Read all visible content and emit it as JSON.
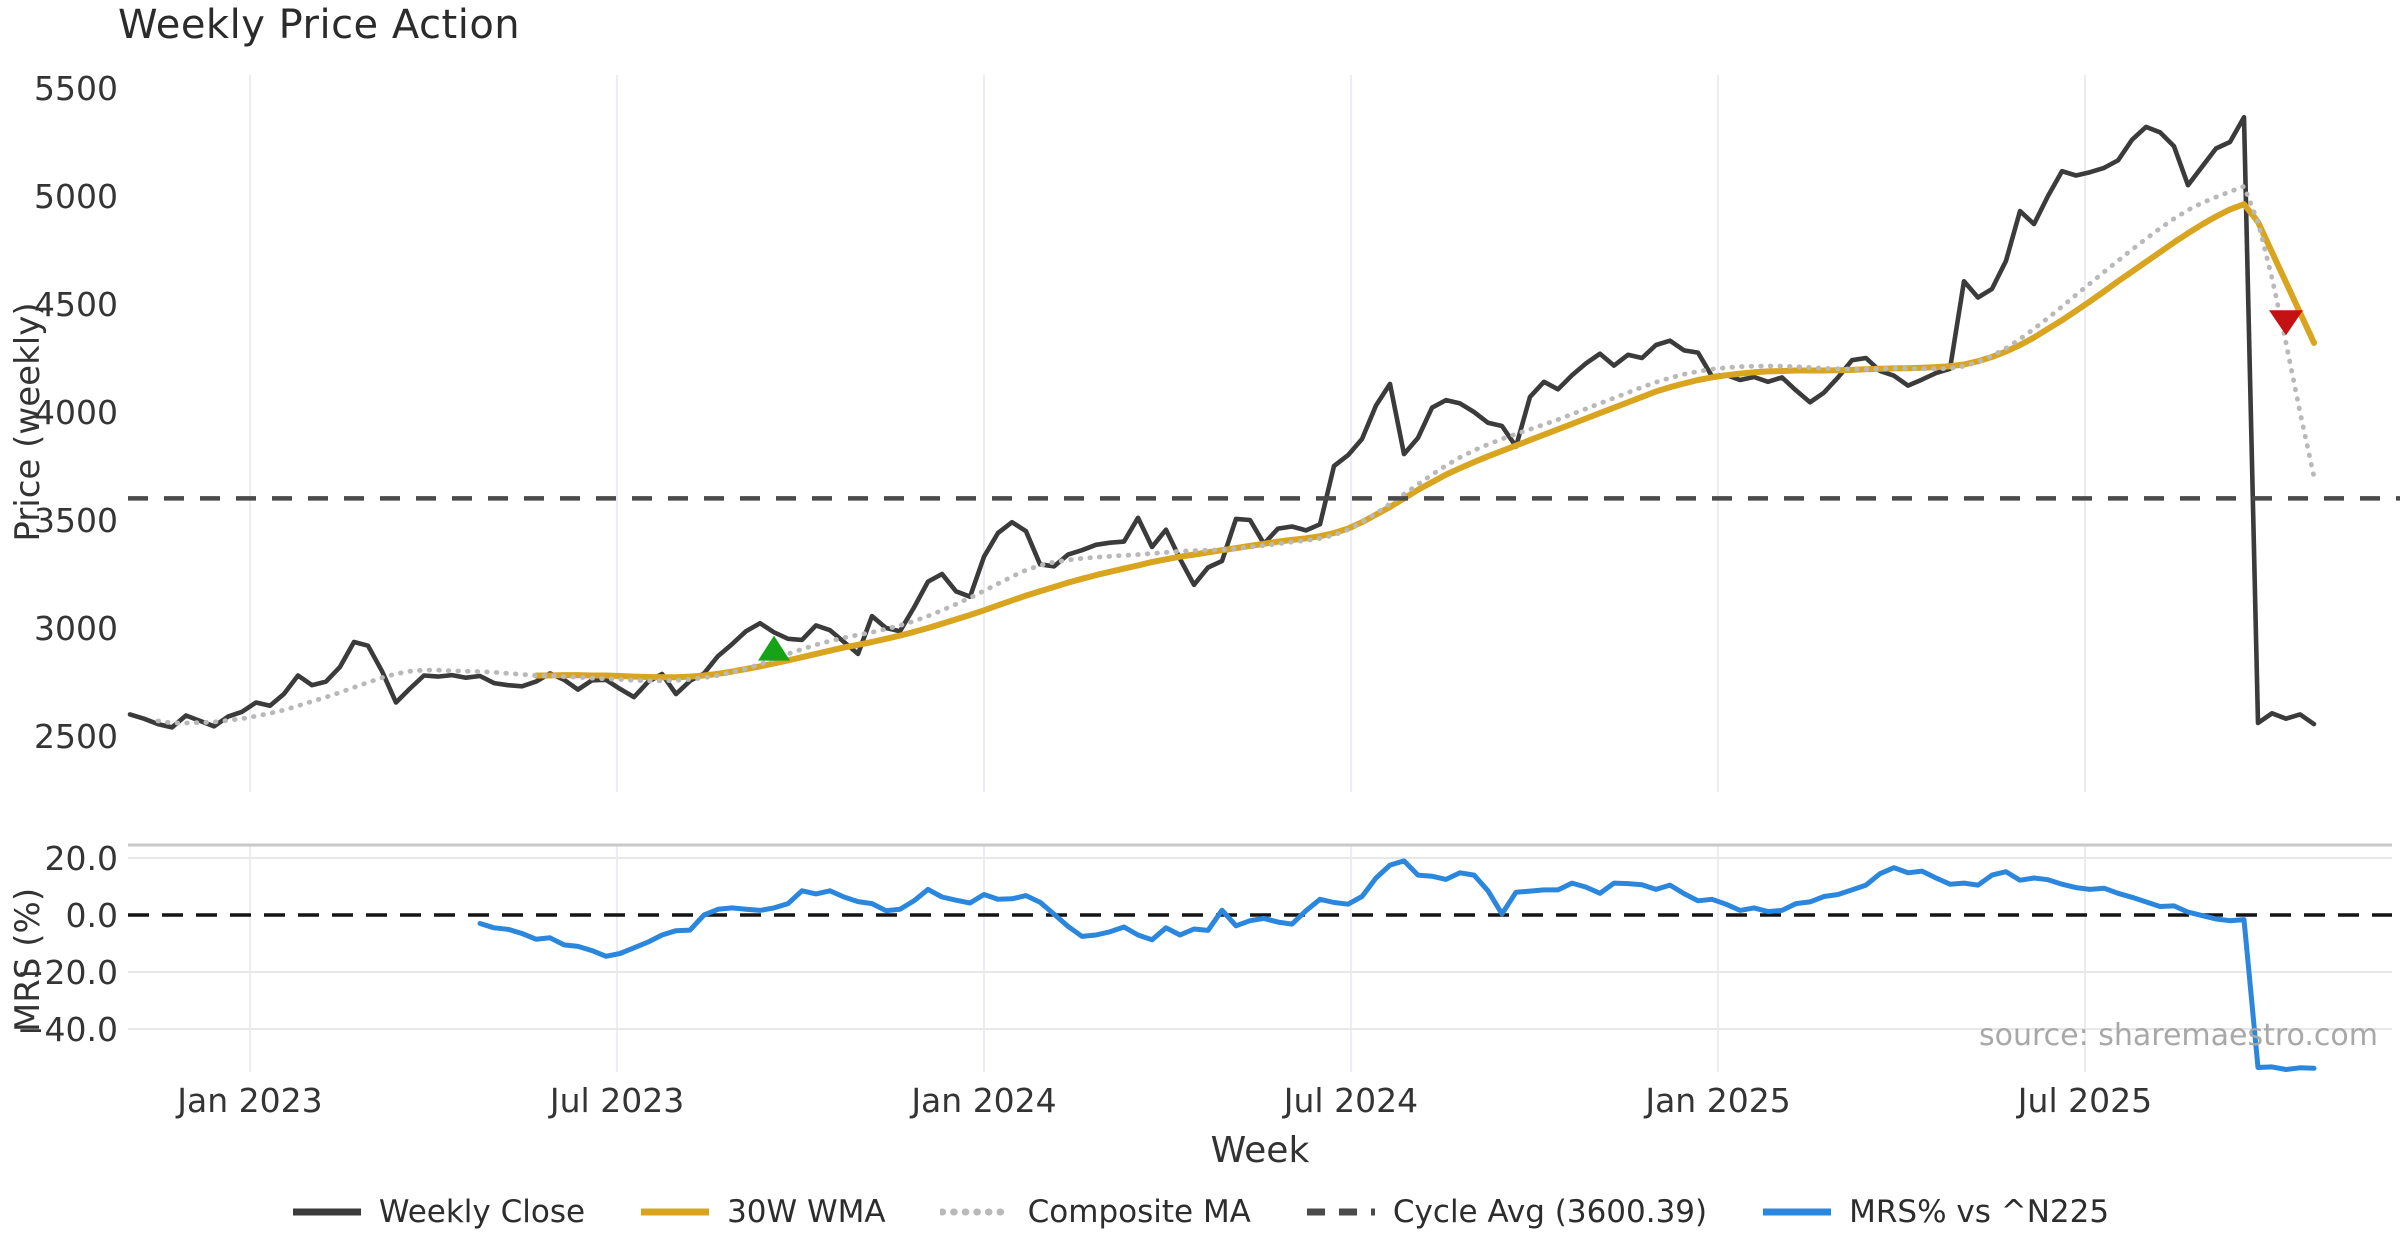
{
  "title": "Weekly Price Action",
  "source_note": "source: sharemaestro.com",
  "colors": {
    "close": "#3b3b3b",
    "wma": "#d9a51f",
    "composite": "#b9b9b9",
    "cycle_avg": "#4a4a4a",
    "mrs": "#2a87dd",
    "zero_line": "#141414",
    "grid": "#ececf3",
    "lower_grid": "#e8e8e8",
    "spine": "#c9c9c9",
    "buy_marker": "#17a317",
    "sell_marker": "#c41212",
    "background": "#ffffff"
  },
  "chart_data": {
    "type": "line",
    "title": "Weekly Price Action",
    "x_axis": {
      "label": "Week",
      "ticks": [
        {
          "label": "Jan 2023",
          "week": 8.57
        },
        {
          "label": "Jul 2023",
          "week": 34.79
        },
        {
          "label": "Jan 2024",
          "week": 61.0
        },
        {
          "label": "Jul 2024",
          "week": 87.21
        },
        {
          "label": "Jan 2025",
          "week": 113.43
        },
        {
          "label": "Jul 2025",
          "week": 139.64
        }
      ]
    },
    "price_axis": {
      "label": "Price (weekly)",
      "ticks": [
        {
          "label": "5500",
          "value": 5500
        },
        {
          "label": "5000",
          "value": 5000
        },
        {
          "label": "4500",
          "value": 4500
        },
        {
          "label": "4000",
          "value": 4000
        },
        {
          "label": "3500",
          "value": 3500
        },
        {
          "label": "3000",
          "value": 3000
        },
        {
          "label": "2500",
          "value": 2500
        }
      ],
      "range": [
        2450,
        5560
      ],
      "grid": "vertical-only"
    },
    "mrs_axis": {
      "label": "MRS (%)",
      "ticks": [
        {
          "label": "20.0",
          "value": 20
        },
        {
          "label": "0.0",
          "value": 0
        },
        {
          "label": "−20.0",
          "value": -20
        },
        {
          "label": "−40.0",
          "value": -40
        }
      ],
      "range": [
        -55,
        24
      ],
      "zero_line_style": "dashed"
    },
    "cycle_avg_value": 3600.39,
    "series": [
      {
        "name": "Weekly Close",
        "style": "solid",
        "color": "#3b3b3b",
        "axis": "price",
        "start_week": 0,
        "values": [
          2600,
          2580,
          2555,
          2540,
          2595,
          2570,
          2545,
          2590,
          2612,
          2655,
          2640,
          2695,
          2780,
          2735,
          2752,
          2820,
          2935,
          2918,
          2800,
          2655,
          2720,
          2780,
          2775,
          2782,
          2770,
          2778,
          2745,
          2735,
          2730,
          2752,
          2790,
          2760,
          2715,
          2758,
          2760,
          2718,
          2680,
          2750,
          2787,
          2694,
          2755,
          2790,
          2870,
          2925,
          2985,
          3022,
          2980,
          2950,
          2945,
          3012,
          2990,
          2935,
          2880,
          3055,
          3000,
          2985,
          3095,
          3215,
          3250,
          3170,
          3145,
          3330,
          3440,
          3490,
          3448,
          3295,
          3285,
          3340,
          3360,
          3385,
          3395,
          3400,
          3510,
          3375,
          3455,
          3320,
          3200,
          3280,
          3310,
          3505,
          3500,
          3390,
          3460,
          3470,
          3452,
          3480,
          3750,
          3800,
          3875,
          4030,
          4130,
          3805,
          3880,
          4020,
          4055,
          4040,
          4000,
          3950,
          3935,
          3840,
          4070,
          4140,
          4105,
          4170,
          4225,
          4270,
          4215,
          4265,
          4250,
          4310,
          4330,
          4285,
          4275,
          4165,
          4172,
          4148,
          4162,
          4140,
          4160,
          4100,
          4045,
          4090,
          4160,
          4240,
          4250,
          4190,
          4168,
          4122,
          4150,
          4180,
          4200,
          4605,
          4530,
          4570,
          4700,
          4930,
          4870,
          5000,
          5115,
          5095,
          5110,
          5130,
          5165,
          5260,
          5320,
          5295,
          5230,
          5050,
          5135,
          5220,
          5250,
          5365,
          2560,
          2605,
          2580,
          2600,
          2555
        ]
      },
      {
        "name": "30W WMA",
        "style": "solid",
        "color": "#d9a51f",
        "axis": "price",
        "start_week": 29,
        "values": [
          2780,
          2780,
          2782,
          2782,
          2780,
          2780,
          2778,
          2775,
          2773,
          2772,
          2772,
          2775,
          2780,
          2788,
          2798,
          2810,
          2822,
          2836,
          2850,
          2865,
          2880,
          2895,
          2910,
          2922,
          2935,
          2950,
          2965,
          2982,
          3000,
          3020,
          3040,
          3060,
          3082,
          3105,
          3128,
          3150,
          3170,
          3190,
          3210,
          3228,
          3245,
          3260,
          3275,
          3290,
          3305,
          3318,
          3330,
          3340,
          3350,
          3360,
          3370,
          3380,
          3390,
          3400,
          3408,
          3415,
          3425,
          3440,
          3460,
          3490,
          3525,
          3560,
          3600,
          3640,
          3675,
          3710,
          3740,
          3768,
          3795,
          3820,
          3845,
          3870,
          3895,
          3920,
          3945,
          3970,
          3995,
          4020,
          4045,
          4070,
          4095,
          4115,
          4132,
          4148,
          4160,
          4170,
          4178,
          4184,
          4188,
          4190,
          4192,
          4192,
          4192,
          4193,
          4195,
          4198,
          4200,
          4202,
          4203,
          4205,
          4208,
          4212,
          4220,
          4235,
          4255,
          4280,
          4310,
          4345,
          4385,
          4425,
          4468,
          4512,
          4558,
          4605,
          4650,
          4695,
          4740,
          4785,
          4828,
          4868,
          4905,
          4938,
          4962,
          4880,
          4740,
          4600,
          4460,
          4320
        ]
      },
      {
        "name": "Composite MA",
        "style": "dotted",
        "color": "#b9b9b9",
        "axis": "price",
        "start_week": 2,
        "values": [
          2570,
          2560,
          2560,
          2562,
          2565,
          2572,
          2580,
          2592,
          2605,
          2620,
          2640,
          2660,
          2680,
          2702,
          2725,
          2748,
          2770,
          2788,
          2800,
          2805,
          2805,
          2802,
          2800,
          2798,
          2795,
          2790,
          2785,
          2780,
          2778,
          2775,
          2772,
          2768,
          2765,
          2762,
          2758,
          2755,
          2755,
          2758,
          2762,
          2770,
          2780,
          2795,
          2812,
          2832,
          2855,
          2880,
          2902,
          2922,
          2940,
          2955,
          2968,
          2980,
          2995,
          3012,
          3032,
          3055,
          3082,
          3110,
          3140,
          3172,
          3205,
          3238,
          3268,
          3290,
          3305,
          3315,
          3322,
          3328,
          3332,
          3336,
          3340,
          3345,
          3350,
          3355,
          3358,
          3360,
          3362,
          3368,
          3375,
          3382,
          3390,
          3398,
          3405,
          3415,
          3430,
          3455,
          3490,
          3530,
          3575,
          3620,
          3665,
          3710,
          3752,
          3790,
          3822,
          3850,
          3875,
          3898,
          3920,
          3942,
          3965,
          3990,
          4015,
          4040,
          4065,
          4090,
          4115,
          4138,
          4158,
          4175,
          4188,
          4198,
          4205,
          4210,
          4212,
          4213,
          4212,
          4210,
          4206,
          4202,
          4200,
          4198,
          4198,
          4200,
          4202,
          4202,
          4200,
          4200,
          4202,
          4212,
          4232,
          4260,
          4295,
          4338,
          4385,
          4435,
          4488,
          4542,
          4595,
          4648,
          4700,
          4752,
          4802,
          4850,
          4895,
          4935,
          4968,
          4995,
          5020,
          5045,
          4880,
          4620,
          4320,
          4000,
          3700
        ]
      },
      {
        "name": "Cycle Avg (3600.39)",
        "style": "dashed",
        "color": "#4a4a4a",
        "axis": "price",
        "constant": 3600.39
      },
      {
        "name": "MRS% vs ^N225",
        "style": "solid",
        "color": "#2a87dd",
        "axis": "mrs",
        "start_week": 25,
        "values": [
          -3,
          -4.5,
          -5,
          -6.5,
          -8.5,
          -8,
          -10.5,
          -11,
          -12.5,
          -14.5,
          -13.5,
          -11.5,
          -9.5,
          -7,
          -5.5,
          -5.3,
          0,
          2,
          2.5,
          2,
          1.6,
          2.5,
          4,
          8.5,
          7.4,
          8.5,
          6.3,
          4.7,
          4,
          1.5,
          2,
          5,
          9,
          6.3,
          5.2,
          4.2,
          7.2,
          5.5,
          5.7,
          6.8,
          4.5,
          0.3,
          -4,
          -7.5,
          -7,
          -5.9,
          -4.2,
          -7,
          -8.7,
          -4.5,
          -7,
          -4.9,
          -5.4,
          1.7,
          -3.8,
          -2,
          -1.2,
          -2.5,
          -3.2,
          1.5,
          5.5,
          4.4,
          3.8,
          6.5,
          13,
          17.5,
          19,
          14,
          13.6,
          12.5,
          14.8,
          14,
          8.5,
          0.4,
          8,
          8.4,
          8.8,
          8.8,
          11.2,
          9.8,
          7.6,
          11.2,
          11,
          10.6,
          9,
          10.5,
          7.5,
          5,
          5.5,
          3.8,
          1.6,
          2.5,
          1.2,
          1.6,
          4,
          4.6,
          6.5,
          7.2,
          8.8,
          10.5,
          14.5,
          16.6,
          14.8,
          15.4,
          13,
          10.8,
          11.2,
          10.5,
          14,
          15.2,
          12.2,
          13,
          12.4,
          10.8,
          9.6,
          9,
          9.4,
          7.6,
          6.2,
          4.6,
          3,
          3.2,
          1,
          -0.2,
          -1.4,
          -2,
          -1.6,
          -53.5,
          -53.3,
          -54.2,
          -53.6,
          -53.8
        ]
      }
    ],
    "markers": [
      {
        "name": "golden-cross-marker",
        "shape": "triangle-up",
        "color": "#17a317",
        "week": 46,
        "value": 2900
      },
      {
        "name": "death-cross-marker",
        "shape": "triangle-down",
        "color": "#c41212",
        "week": 154,
        "value": 4420
      }
    ],
    "legend": [
      {
        "label": "Weekly Close",
        "color": "#3b3b3b",
        "style": "solid"
      },
      {
        "label": "30W WMA",
        "color": "#d9a51f",
        "style": "solid"
      },
      {
        "label": "Composite MA",
        "color": "#b9b9b9",
        "style": "dotted"
      },
      {
        "label": "Cycle Avg (3600.39)",
        "color": "#4a4a4a",
        "style": "dashed"
      },
      {
        "label": "MRS% vs ^N225",
        "color": "#2a87dd",
        "style": "solid"
      }
    ],
    "legend_position": "bottom-center",
    "grid_on": true
  }
}
